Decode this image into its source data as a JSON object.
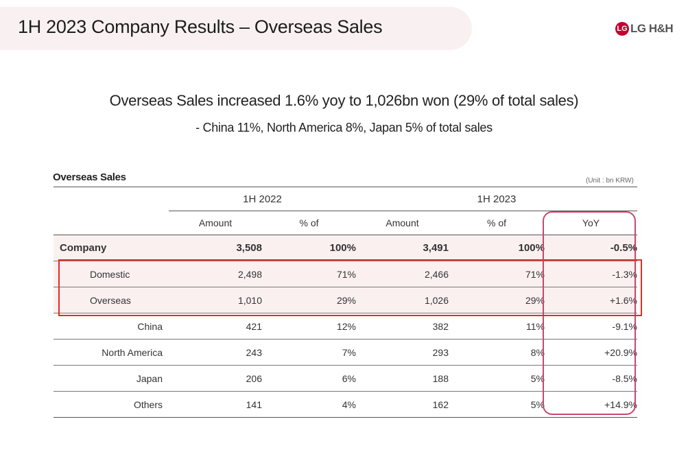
{
  "header": {
    "title": "1H 2023 Company Results – Overseas Sales",
    "logo_mark": "LG",
    "logo_text": "LG H&H"
  },
  "headline": "Overseas Sales increased 1.6% yoy to 1,026bn won (29% of total sales)",
  "subheadline": "- China 11%, North America 8%, Japan 5% of total sales",
  "table": {
    "section_label": "Overseas Sales",
    "unit_note": "(Unit : bn KRW)",
    "periods": [
      "1H 2022",
      "1H 2023"
    ],
    "columns": [
      "Amount",
      "% of",
      "Amount",
      "% of",
      "YoY"
    ],
    "rows": [
      {
        "label": "Company",
        "cells": [
          "3,508",
          "100%",
          "3,491",
          "100%",
          "-0.5%"
        ]
      },
      {
        "label": "Domestic",
        "cells": [
          "2,498",
          "71%",
          "2,466",
          "71%",
          "-1.3%"
        ]
      },
      {
        "label": "Overseas",
        "cells": [
          "1,010",
          "29%",
          "1,026",
          "29%",
          "+1.6%"
        ]
      },
      {
        "label": "China",
        "cells": [
          "421",
          "12%",
          "382",
          "11%",
          "-9.1%"
        ]
      },
      {
        "label": "North America",
        "cells": [
          "243",
          "7%",
          "293",
          "8%",
          "+20.9%"
        ]
      },
      {
        "label": "Japan",
        "cells": [
          "206",
          "6%",
          "188",
          "5%",
          "-8.5%"
        ]
      },
      {
        "label": "Others",
        "cells": [
          "141",
          "4%",
          "162",
          "5%",
          "+14.9%"
        ]
      }
    ]
  },
  "colors": {
    "brand": "#c3002f",
    "row_highlight": "#fbf0f0",
    "yoy_outline": "#c9466c",
    "callout_outline": "#e52c1d"
  }
}
